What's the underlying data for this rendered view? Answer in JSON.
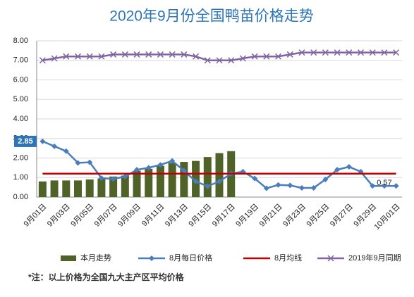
{
  "chart_data": {
    "type": "bar_line",
    "title": "2020年9月份全国鸭苗价格走势",
    "note": "*注：以上价格为全国九大主产区平均价格",
    "categories": [
      "9月01日",
      null,
      "9月03日",
      null,
      "9月05日",
      null,
      "9月07日",
      null,
      "9月09日",
      null,
      "9月11日",
      null,
      "9月13日",
      null,
      "9月15日",
      null,
      "9月17日",
      null,
      "9月19日",
      null,
      "9月21日",
      null,
      "9月23日",
      null,
      "9月25日",
      null,
      "9月27日",
      null,
      "9月29日",
      null,
      "10月01日"
    ],
    "ylim": [
      0,
      8
    ],
    "yticks": [
      {
        "value": 0,
        "label": "0.00"
      },
      {
        "value": 1,
        "label": "1.00"
      },
      {
        "value": 2,
        "label": "2.00"
      },
      {
        "value": 3,
        "label": "3.00"
      },
      {
        "value": 4,
        "label": "4.00"
      },
      {
        "value": 5,
        "label": "5.00"
      },
      {
        "value": 6,
        "label": "6.00"
      },
      {
        "value": 7,
        "label": "7.00"
      },
      {
        "value": 8,
        "label": "8.00"
      }
    ],
    "grid": true,
    "legend": "bottom",
    "series": [
      {
        "name": "本月走势",
        "kind": "bar",
        "color": "#4f6228",
        "values": [
          0.8,
          0.85,
          0.85,
          0.85,
          0.9,
          0.95,
          1.05,
          1.1,
          1.35,
          1.45,
          1.6,
          1.75,
          1.8,
          1.85,
          2.05,
          2.25,
          2.35,
          null,
          null,
          null,
          null,
          null,
          null,
          null,
          null,
          null,
          null,
          null,
          null,
          null,
          null
        ]
      },
      {
        "name": "8月每日价格",
        "kind": "line",
        "marker": "diamond",
        "color": "#4a7ebb",
        "values": [
          2.85,
          2.6,
          2.35,
          1.75,
          1.78,
          0.97,
          0.93,
          1.05,
          1.4,
          1.5,
          1.65,
          1.85,
          1.35,
          0.8,
          0.55,
          0.8,
          1.2,
          1.3,
          0.95,
          0.45,
          0.62,
          0.6,
          0.47,
          0.47,
          0.9,
          1.4,
          1.55,
          1.3,
          0.57,
          0.57,
          0.57
        ],
        "value_labels": [
          "2.85",
          null,
          null,
          null,
          null,
          null,
          null,
          null,
          null,
          null,
          null,
          null,
          null,
          null,
          null,
          null,
          null,
          null,
          null,
          null,
          null,
          null,
          null,
          null,
          null,
          null,
          null,
          null,
          null,
          "0.57",
          null
        ]
      },
      {
        "name": "8月均线",
        "kind": "line",
        "marker": "none",
        "color": "#c00000",
        "values": [
          1.2,
          1.2,
          1.2,
          1.2,
          1.2,
          1.2,
          1.2,
          1.2,
          1.2,
          1.2,
          1.2,
          1.2,
          1.2,
          1.2,
          1.2,
          1.2,
          1.2,
          1.2,
          1.2,
          1.2,
          1.2,
          1.2,
          1.2,
          1.2,
          1.2,
          1.2,
          1.2,
          1.2,
          1.2,
          1.2,
          1.2
        ]
      },
      {
        "name": "2019年9月同期",
        "kind": "line",
        "marker": "x",
        "color": "#8064a2",
        "values": [
          7.0,
          7.1,
          7.2,
          7.2,
          7.2,
          7.2,
          7.3,
          7.3,
          7.3,
          7.3,
          7.3,
          7.3,
          7.3,
          7.2,
          7.0,
          7.0,
          7.0,
          7.1,
          7.2,
          7.2,
          7.2,
          7.3,
          7.4,
          7.4,
          7.4,
          7.4,
          7.4,
          7.4,
          7.4,
          7.4,
          7.4
        ]
      }
    ]
  }
}
